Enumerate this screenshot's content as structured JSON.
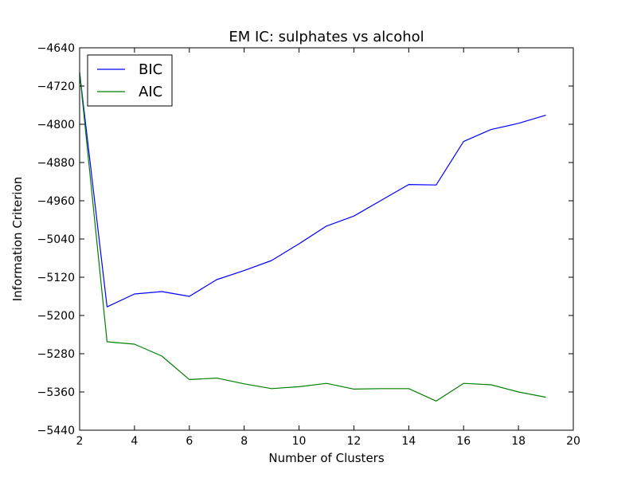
{
  "chart_data": {
    "type": "line",
    "title": "EM IC: sulphates vs alcohol",
    "xlabel": "Number of Clusters",
    "ylabel": "Information Criterion",
    "xlim": [
      2,
      20
    ],
    "ylim": [
      -5440,
      -4640
    ],
    "xticks": [
      "2",
      "4",
      "6",
      "8",
      "10",
      "12",
      "14",
      "16",
      "18",
      "20"
    ],
    "yticks": [
      "−4640",
      "−4720",
      "−4800",
      "−4880",
      "−4960",
      "−5040",
      "−5120",
      "−5200",
      "−5280",
      "−5360",
      "−5440"
    ],
    "grid": false,
    "legend_position": "top-left",
    "x": [
      2,
      3,
      4,
      5,
      6,
      7,
      8,
      9,
      10,
      11,
      12,
      13,
      14,
      15,
      16,
      17,
      18,
      19
    ],
    "series": [
      {
        "name": "BIC",
        "color": "#0000ff",
        "values": [
          -4692,
          -5182,
          -5155,
          -5150,
          -5160,
          -5125,
          -5106,
          -5085,
          -5050,
          -5013,
          -4992,
          -4959,
          -4926,
          -4927,
          -4836,
          -4811,
          -4798,
          -4781
        ]
      },
      {
        "name": "AIC",
        "color": "#008000",
        "values": [
          -4692,
          -5255,
          -5260,
          -5285,
          -5334,
          -5331,
          -5343,
          -5353,
          -5349,
          -5342,
          -5354,
          -5353,
          -5353,
          -5379,
          -5342,
          -5345,
          -5360,
          -5371
        ]
      }
    ]
  }
}
